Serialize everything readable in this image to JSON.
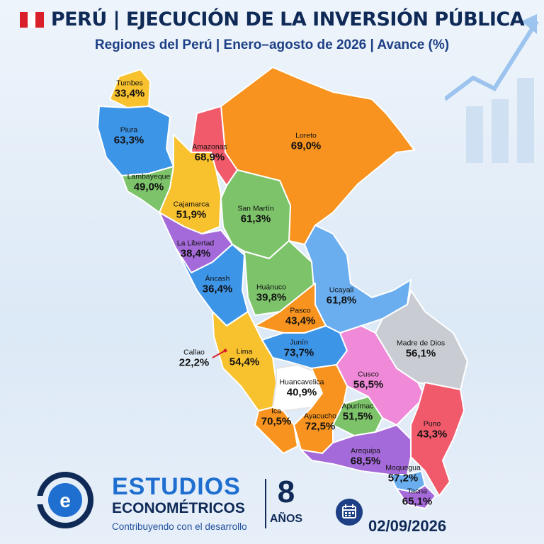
{
  "header": {
    "title": "PERÚ | EJECUCIÓN DE LA INVERSIÓN PÚBLICA",
    "subtitle": "Regiones del Perú | Enero–agosto de 2026 | Avance (%)"
  },
  "colors": {
    "flag_red": "#d91f2a",
    "orange": "#f7931e",
    "red": "#f05a6a",
    "blue": "#3d95e8",
    "light_blue": "#6aaef0",
    "green": "#7cc36a",
    "purple": "#a56ad9",
    "yellow": "#f8c12e",
    "pink": "#f08ad8",
    "gray": "#c9cdd3",
    "navy": "#0f2a57",
    "brand_blue": "#1f6fd0"
  },
  "regions": [
    {
      "name": "Tumbes",
      "value": "33,4%"
    },
    {
      "name": "Piura",
      "value": "63,3%"
    },
    {
      "name": "Amazonas",
      "value": "68,9%"
    },
    {
      "name": "Loreto",
      "value": "69,0%"
    },
    {
      "name": "Lambayeque",
      "value": "49,0%"
    },
    {
      "name": "Cajamarca",
      "value": "51,9%"
    },
    {
      "name": "San Martín",
      "value": "61,3%"
    },
    {
      "name": "La Libertad",
      "value": "38,4%"
    },
    {
      "name": "Áncash",
      "value": "36,4%"
    },
    {
      "name": "Huánuco",
      "value": "39,8%"
    },
    {
      "name": "Ucayali",
      "value": "61,8%"
    },
    {
      "name": "Pasco",
      "value": "43,4%"
    },
    {
      "name": "Madre de Dios",
      "value": "56,1%"
    },
    {
      "name": "Callao",
      "value": "22,2%"
    },
    {
      "name": "Lima",
      "value": "54,4%"
    },
    {
      "name": "Junín",
      "value": "73,7%"
    },
    {
      "name": "Cusco",
      "value": "56,5%"
    },
    {
      "name": "Huancavelica",
      "value": "40,9%"
    },
    {
      "name": "Ica",
      "value": "70,5%"
    },
    {
      "name": "Ayacucho",
      "value": "72,5%"
    },
    {
      "name": "Apurímac",
      "value": "51,5%"
    },
    {
      "name": "Puno",
      "value": "43,3%"
    },
    {
      "name": "Arequipa",
      "value": "68,5%"
    },
    {
      "name": "Moquegua",
      "value": "57,2%"
    },
    {
      "name": "Tacna",
      "value": "65,1%"
    }
  ],
  "footer": {
    "brand_line1": "ESTUDIOS",
    "brand_line2": "ECONOMÉTRICOS",
    "tagline": "Contribuyendo con el desarrollo",
    "years_number": "8",
    "years_label": "AÑOS",
    "date": "02/09/2026",
    "icons": [
      "logo-e-icon",
      "calendar-icon"
    ]
  }
}
